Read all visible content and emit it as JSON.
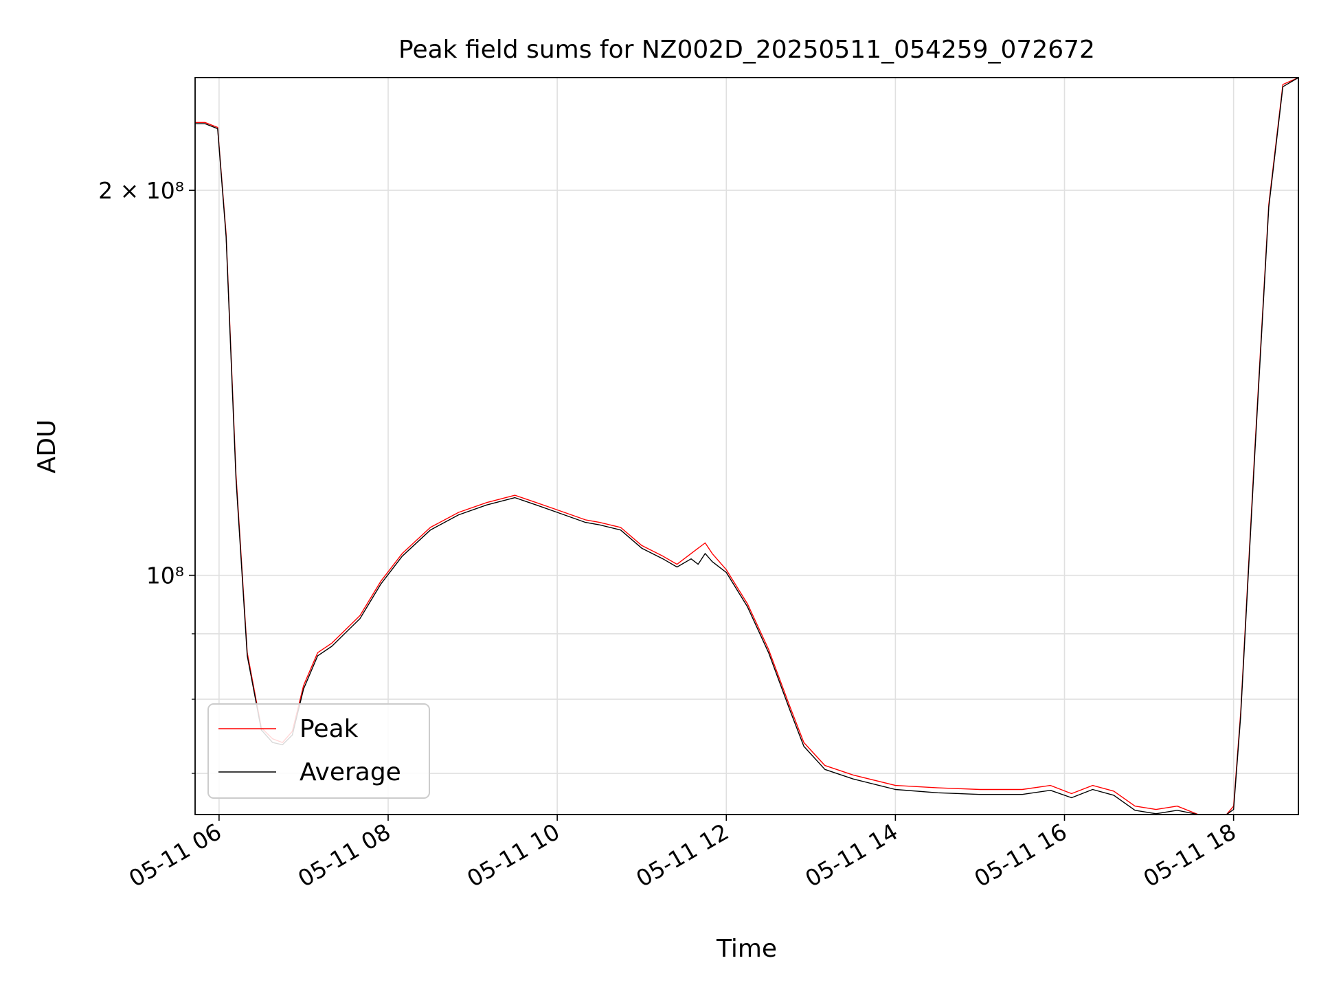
{
  "chart_data": {
    "type": "line",
    "title": "Peak field sums for NZ002D_20250511_054259_072672",
    "xlabel": "Time",
    "ylabel": "ADU",
    "y_scale": "log",
    "xlim": [
      "2025-05-11 05:43",
      "2025-05-11 18:46"
    ],
    "ylim": [
      65000000,
      245000000
    ],
    "grid": true,
    "legend_position": "lower left",
    "x_ticks": [
      "05-11 06",
      "05-11 08",
      "05-11 10",
      "05-11 12",
      "05-11 14",
      "05-11 16",
      "05-11 18"
    ],
    "y_ticks_labeled": [
      {
        "value": 200000000,
        "label": "2 × 10⁸"
      },
      {
        "value": 100000000,
        "label": "10⁸"
      }
    ],
    "y_ticks_minor": [
      70000000,
      80000000,
      90000000
    ],
    "x_tick_times": [
      "2025-05-11 06:00",
      "2025-05-11 08:00",
      "2025-05-11 10:00",
      "2025-05-11 12:00",
      "2025-05-11 14:00",
      "2025-05-11 16:00",
      "2025-05-11 18:00"
    ],
    "series": [
      {
        "name": "Peak",
        "color": "#ff0000",
        "x": [
          "2025-05-11 05:43",
          "2025-05-11 05:50",
          "2025-05-11 05:59",
          "2025-05-11 06:05",
          "2025-05-11 06:12",
          "2025-05-11 06:20",
          "2025-05-11 06:30",
          "2025-05-11 06:38",
          "2025-05-11 06:45",
          "2025-05-11 06:52",
          "2025-05-11 07:00",
          "2025-05-11 07:10",
          "2025-05-11 07:20",
          "2025-05-11 07:40",
          "2025-05-11 07:55",
          "2025-05-11 08:10",
          "2025-05-11 08:30",
          "2025-05-11 08:50",
          "2025-05-11 09:10",
          "2025-05-11 09:30",
          "2025-05-11 09:45",
          "2025-05-11 10:00",
          "2025-05-11 10:20",
          "2025-05-11 10:30",
          "2025-05-11 10:45",
          "2025-05-11 11:00",
          "2025-05-11 11:15",
          "2025-05-11 11:25",
          "2025-05-11 11:35",
          "2025-05-11 11:40",
          "2025-05-11 11:45",
          "2025-05-11 11:50",
          "2025-05-11 12:00",
          "2025-05-11 12:15",
          "2025-05-11 12:30",
          "2025-05-11 12:45",
          "2025-05-11 12:55",
          "2025-05-11 13:10",
          "2025-05-11 13:30",
          "2025-05-11 14:00",
          "2025-05-11 14:30",
          "2025-05-11 15:00",
          "2025-05-11 15:30",
          "2025-05-11 15:50",
          "2025-05-11 16:05",
          "2025-05-11 16:20",
          "2025-05-11 16:35",
          "2025-05-11 16:50",
          "2025-05-11 17:05",
          "2025-05-11 17:20",
          "2025-05-11 17:35",
          "2025-05-11 17:50",
          "2025-05-11 17:55",
          "2025-05-11 18:00",
          "2025-05-11 18:05",
          "2025-05-11 18:15",
          "2025-05-11 18:25",
          "2025-05-11 18:35",
          "2025-05-11 18:46"
        ],
        "y": [
          226000000,
          226000000,
          224000000,
          185000000,
          120000000,
          87000000,
          76000000,
          74500000,
          74000000,
          75500000,
          82000000,
          87000000,
          88500000,
          93000000,
          99000000,
          104000000,
          109000000,
          112000000,
          114000000,
          115500000,
          114000000,
          112500000,
          110500000,
          110000000,
          109000000,
          105500000,
          103500000,
          102000000,
          104000000,
          105000000,
          106000000,
          104000000,
          101000000,
          95000000,
          87500000,
          79000000,
          74000000,
          71000000,
          69800000,
          68500000,
          68200000,
          68000000,
          68000000,
          68500000,
          67500000,
          68500000,
          67800000,
          66000000,
          65600000,
          66000000,
          64500000,
          63800000,
          64200000,
          66000000,
          78000000,
          125000000,
          195000000,
          242000000,
          245000000
        ]
      },
      {
        "name": "Average",
        "color": "#000000",
        "x": [
          "2025-05-11 05:43",
          "2025-05-11 05:50",
          "2025-05-11 05:59",
          "2025-05-11 06:05",
          "2025-05-11 06:12",
          "2025-05-11 06:20",
          "2025-05-11 06:30",
          "2025-05-11 06:38",
          "2025-05-11 06:45",
          "2025-05-11 06:52",
          "2025-05-11 07:00",
          "2025-05-11 07:10",
          "2025-05-11 07:20",
          "2025-05-11 07:40",
          "2025-05-11 07:55",
          "2025-05-11 08:10",
          "2025-05-11 08:30",
          "2025-05-11 08:50",
          "2025-05-11 09:10",
          "2025-05-11 09:30",
          "2025-05-11 09:45",
          "2025-05-11 10:00",
          "2025-05-11 10:20",
          "2025-05-11 10:30",
          "2025-05-11 10:45",
          "2025-05-11 11:00",
          "2025-05-11 11:15",
          "2025-05-11 11:25",
          "2025-05-11 11:35",
          "2025-05-11 11:40",
          "2025-05-11 11:45",
          "2025-05-11 11:50",
          "2025-05-11 12:00",
          "2025-05-11 12:15",
          "2025-05-11 12:30",
          "2025-05-11 12:45",
          "2025-05-11 12:55",
          "2025-05-11 13:10",
          "2025-05-11 13:30",
          "2025-05-11 14:00",
          "2025-05-11 14:30",
          "2025-05-11 15:00",
          "2025-05-11 15:30",
          "2025-05-11 15:50",
          "2025-05-11 16:05",
          "2025-05-11 16:20",
          "2025-05-11 16:35",
          "2025-05-11 16:50",
          "2025-05-11 17:05",
          "2025-05-11 17:20",
          "2025-05-11 17:35",
          "2025-05-11 17:50",
          "2025-05-11 17:55",
          "2025-05-11 18:00",
          "2025-05-11 18:05",
          "2025-05-11 18:15",
          "2025-05-11 18:25",
          "2025-05-11 18:35",
          "2025-05-11 18:46"
        ],
        "y": [
          225500000,
          225500000,
          223500000,
          184000000,
          119000000,
          86500000,
          75700000,
          74000000,
          73700000,
          75000000,
          81500000,
          86500000,
          88000000,
          92500000,
          98500000,
          103500000,
          108500000,
          111500000,
          113500000,
          115000000,
          113500000,
          112000000,
          110000000,
          109500000,
          108500000,
          105000000,
          103000000,
          101500000,
          103000000,
          102000000,
          104000000,
          102500000,
          100500000,
          94500000,
          87000000,
          78500000,
          73500000,
          70500000,
          69300000,
          68000000,
          67600000,
          67400000,
          67400000,
          67900000,
          67000000,
          68000000,
          67300000,
          65500000,
          65100000,
          65500000,
          64000000,
          63400000,
          63800000,
          65600000,
          77500000,
          124000000,
          194000000,
          241000000,
          245000000
        ]
      }
    ]
  }
}
